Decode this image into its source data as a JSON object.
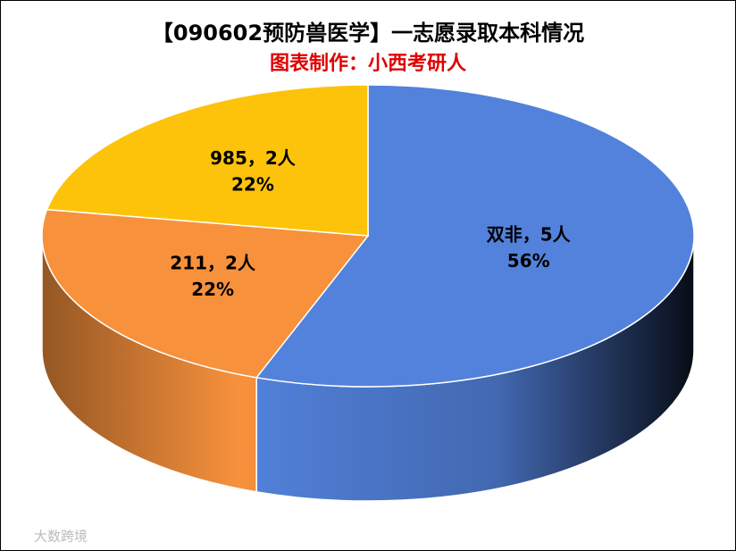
{
  "chart_data": {
    "type": "pie3d",
    "title": "【090602预防兽医学】一志愿录取本科情况",
    "subtitle": "图表制作：小西考研人",
    "categories": [
      "双非",
      "211",
      "985"
    ],
    "values": [
      5,
      2,
      2
    ],
    "value_labels": [
      "5人",
      "2人",
      "2人"
    ],
    "label_separator": "，",
    "percent_labels": [
      "56%",
      "22%",
      "22%"
    ],
    "colors": [
      "#5282dc",
      "#f7913c",
      "#fcc30a"
    ],
    "watermark": "大数跨境"
  }
}
